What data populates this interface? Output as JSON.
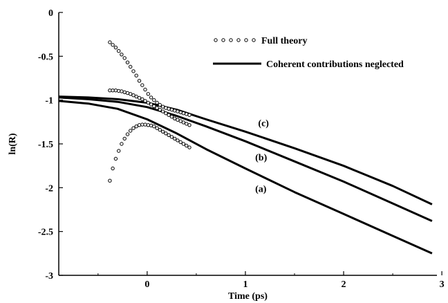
{
  "chart_data": {
    "type": "line",
    "xlabel": "Time (ps)",
    "ylabel": "ln(R)",
    "xlim": [
      -0.9,
      2.95
    ],
    "ylim": [
      -3,
      0
    ],
    "x_ticks": [
      0,
      1,
      2,
      3
    ],
    "x_tick_labels": [
      "0",
      "1",
      "2",
      "3"
    ],
    "y_ticks": [
      0,
      -0.5,
      -1,
      -1.5,
      -2,
      -2.5,
      -3
    ],
    "y_tick_labels": [
      "0",
      "-0.5",
      "-1",
      "-1.5",
      "-2",
      "-2.5",
      "-3"
    ],
    "grid": false,
    "legend_position": "top-right",
    "legend": {
      "markers": "Full theory",
      "line": "Coherent contributions neglected"
    },
    "curve_labels": {
      "a": "(a)",
      "b": "(b)",
      "c": "(c)"
    },
    "series": [
      {
        "name": "Coherent contributions neglected",
        "curve": "a",
        "style": "line",
        "points": [
          [
            -0.9,
            -1.01
          ],
          [
            -0.6,
            -1.04
          ],
          [
            -0.3,
            -1.1
          ],
          [
            0.0,
            -1.22
          ],
          [
            0.3,
            -1.38
          ],
          [
            0.6,
            -1.56
          ],
          [
            1.0,
            -1.78
          ],
          [
            1.5,
            -2.05
          ],
          [
            2.0,
            -2.3
          ],
          [
            2.5,
            -2.55
          ],
          [
            2.9,
            -2.75
          ]
        ]
      },
      {
        "name": "Coherent contributions neglected",
        "curve": "b",
        "style": "line",
        "points": [
          [
            -0.9,
            -0.97
          ],
          [
            -0.6,
            -0.99
          ],
          [
            -0.3,
            -1.02
          ],
          [
            0.0,
            -1.08
          ],
          [
            0.3,
            -1.18
          ],
          [
            0.6,
            -1.3
          ],
          [
            1.0,
            -1.47
          ],
          [
            1.5,
            -1.7
          ],
          [
            2.0,
            -1.93
          ],
          [
            2.5,
            -2.18
          ],
          [
            2.9,
            -2.38
          ]
        ]
      },
      {
        "name": "Coherent contributions neglected",
        "curve": "c",
        "style": "line",
        "points": [
          [
            -0.9,
            -0.96
          ],
          [
            -0.6,
            -0.97
          ],
          [
            -0.3,
            -0.99
          ],
          [
            0.0,
            -1.03
          ],
          [
            0.3,
            -1.11
          ],
          [
            0.6,
            -1.22
          ],
          [
            1.0,
            -1.36
          ],
          [
            1.5,
            -1.55
          ],
          [
            2.0,
            -1.75
          ],
          [
            2.5,
            -1.98
          ],
          [
            2.9,
            -2.19
          ]
        ]
      },
      {
        "name": "Full theory",
        "curve": "a",
        "style": "markers",
        "points": [
          [
            -0.38,
            -1.92
          ],
          [
            -0.35,
            -1.78
          ],
          [
            -0.32,
            -1.67
          ],
          [
            -0.29,
            -1.58
          ],
          [
            -0.26,
            -1.5
          ],
          [
            -0.23,
            -1.44
          ],
          [
            -0.2,
            -1.39
          ],
          [
            -0.17,
            -1.35
          ],
          [
            -0.14,
            -1.32
          ],
          [
            -0.11,
            -1.3
          ],
          [
            -0.08,
            -1.285
          ],
          [
            -0.05,
            -1.28
          ],
          [
            -0.02,
            -1.28
          ],
          [
            0.01,
            -1.285
          ],
          [
            0.04,
            -1.29
          ],
          [
            0.07,
            -1.3
          ],
          [
            0.1,
            -1.32
          ],
          [
            0.13,
            -1.34
          ],
          [
            0.16,
            -1.36
          ],
          [
            0.19,
            -1.38
          ],
          [
            0.22,
            -1.4
          ],
          [
            0.25,
            -1.42
          ],
          [
            0.28,
            -1.44
          ],
          [
            0.31,
            -1.46
          ],
          [
            0.34,
            -1.48
          ],
          [
            0.37,
            -1.5
          ],
          [
            0.4,
            -1.52
          ],
          [
            0.43,
            -1.54
          ]
        ]
      },
      {
        "name": "Full theory",
        "curve": "b",
        "style": "markers",
        "points": [
          [
            -0.38,
            -0.89
          ],
          [
            -0.35,
            -0.89
          ],
          [
            -0.32,
            -0.89
          ],
          [
            -0.29,
            -0.895
          ],
          [
            -0.26,
            -0.9
          ],
          [
            -0.23,
            -0.91
          ],
          [
            -0.2,
            -0.92
          ],
          [
            -0.17,
            -0.93
          ],
          [
            -0.14,
            -0.945
          ],
          [
            -0.11,
            -0.96
          ],
          [
            -0.08,
            -0.975
          ],
          [
            -0.05,
            -0.99
          ],
          [
            -0.02,
            -1.01
          ],
          [
            0.01,
            -1.03
          ],
          [
            0.04,
            -1.05
          ],
          [
            0.07,
            -1.07
          ],
          [
            0.1,
            -1.09
          ],
          [
            0.13,
            -1.11
          ],
          [
            0.16,
            -1.13
          ],
          [
            0.19,
            -1.15
          ],
          [
            0.22,
            -1.17
          ],
          [
            0.25,
            -1.19
          ],
          [
            0.28,
            -1.21
          ],
          [
            0.31,
            -1.225
          ],
          [
            0.34,
            -1.24
          ],
          [
            0.37,
            -1.255
          ],
          [
            0.4,
            -1.27
          ],
          [
            0.43,
            -1.285
          ]
        ]
      },
      {
        "name": "Full theory",
        "curve": "c",
        "style": "markers",
        "points": [
          [
            -0.38,
            -0.34
          ],
          [
            -0.35,
            -0.37
          ],
          [
            -0.32,
            -0.4
          ],
          [
            -0.29,
            -0.44
          ],
          [
            -0.26,
            -0.48
          ],
          [
            -0.23,
            -0.52
          ],
          [
            -0.2,
            -0.57
          ],
          [
            -0.17,
            -0.62
          ],
          [
            -0.14,
            -0.67
          ],
          [
            -0.11,
            -0.72
          ],
          [
            -0.08,
            -0.78
          ],
          [
            -0.05,
            -0.83
          ],
          [
            -0.02,
            -0.88
          ],
          [
            0.01,
            -0.93
          ],
          [
            0.04,
            -0.97
          ],
          [
            0.07,
            -1.0
          ],
          [
            0.1,
            -1.03
          ],
          [
            0.13,
            -1.055
          ],
          [
            0.16,
            -1.075
          ],
          [
            0.19,
            -1.09
          ],
          [
            0.22,
            -1.1
          ],
          [
            0.25,
            -1.11
          ],
          [
            0.28,
            -1.12
          ],
          [
            0.31,
            -1.13
          ],
          [
            0.34,
            -1.14
          ],
          [
            0.37,
            -1.15
          ],
          [
            0.4,
            -1.16
          ],
          [
            0.43,
            -1.17
          ]
        ]
      }
    ]
  }
}
